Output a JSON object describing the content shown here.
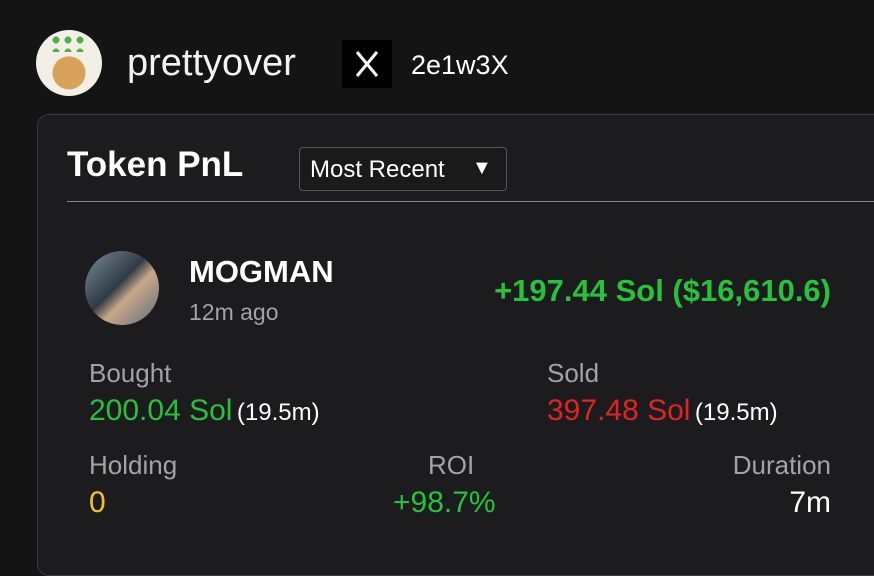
{
  "profile": {
    "name": "prettyover",
    "handle": "2e1w3X"
  },
  "card": {
    "title": "Token PnL",
    "dropdown": "Most Recent",
    "token": {
      "name": "MOGMAN",
      "time": "12m ago",
      "pnl": "+197.44 Sol ($16,610.6)"
    },
    "stats": {
      "bought": {
        "label": "Bought",
        "value": "200.04 Sol",
        "duration": "(19.5m)"
      },
      "sold": {
        "label": "Sold",
        "value": "397.48 Sol",
        "duration": "(19.5m)"
      },
      "holding": {
        "label": "Holding",
        "value": "0"
      },
      "roi": {
        "label": "ROI",
        "value": "+98.7%"
      },
      "duration": {
        "label": "Duration",
        "value": "7m"
      }
    }
  }
}
